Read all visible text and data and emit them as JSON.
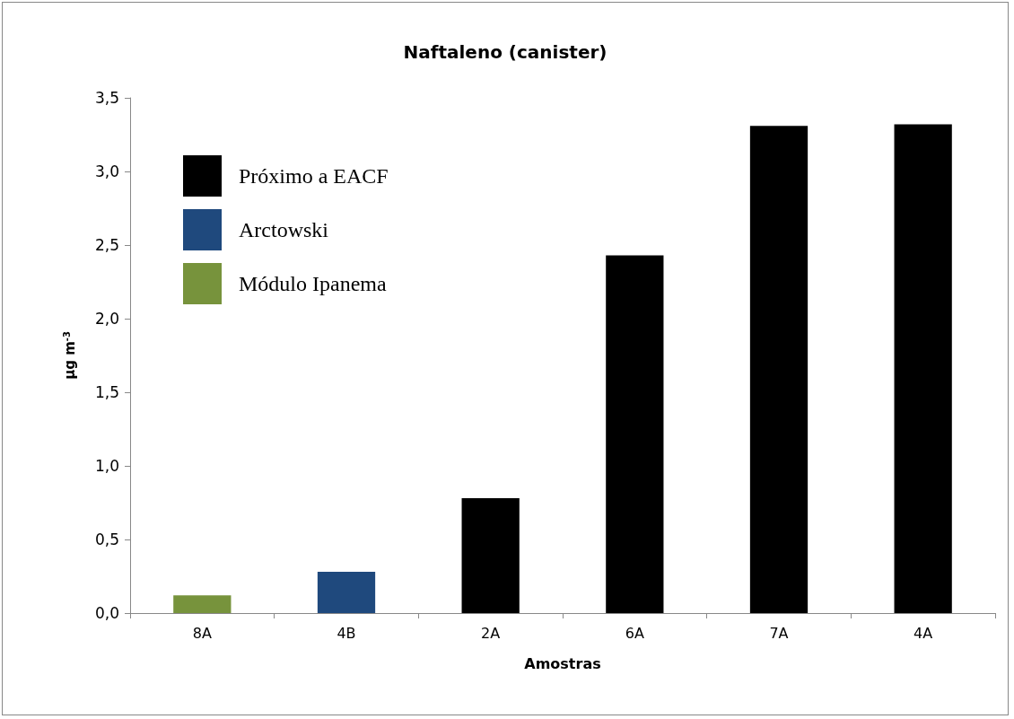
{
  "chart_data": {
    "type": "bar",
    "title": "Naftaleno (canister)",
    "xlabel": "Amostras",
    "ylabel": "µg m$^{-3}$",
    "categories": [
      "8A",
      "4B",
      "2A",
      "6A",
      "7A",
      "4A"
    ],
    "stacked": true,
    "series": [
      {
        "name": "Próximo a EACF",
        "color": "#000000",
        "values": [
          null,
          null,
          0.78,
          2.43,
          3.31,
          3.32
        ]
      },
      {
        "name": "Arctowski",
        "color": "#1f497d",
        "values": [
          null,
          0.28,
          null,
          null,
          null,
          null
        ]
      },
      {
        "name": "Módulo Ipanema",
        "color": "#77933c",
        "values": [
          0.12,
          null,
          null,
          null,
          null,
          null
        ]
      }
    ],
    "ylim": [
      0,
      3.5
    ],
    "yticks": [
      {
        "value": 0,
        "label": "0,0"
      },
      {
        "value": 0.5,
        "label": "0,5"
      },
      {
        "value": 1,
        "label": "1,0"
      },
      {
        "value": 1.5,
        "label": "1,5"
      },
      {
        "value": 2,
        "label": "2,0"
      },
      {
        "value": 2.5,
        "label": "2,5"
      },
      {
        "value": 3,
        "label": "3,0"
      },
      {
        "value": 3.5,
        "label": "3,5"
      }
    ],
    "grid": false,
    "legend": "top left"
  }
}
